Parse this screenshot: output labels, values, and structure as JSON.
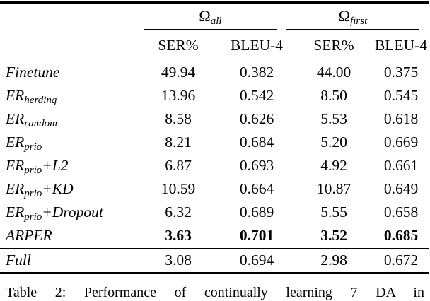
{
  "table": {
    "col_groups": [
      {
        "symbol": "Ω",
        "subscript": "all"
      },
      {
        "symbol": "Ω",
        "subscript": "first"
      }
    ],
    "sub_headers": [
      "SER%",
      "BLEU-4",
      "SER%",
      "BLEU-4"
    ],
    "rows": [
      {
        "method": {
          "base": "Finetune",
          "sub": "",
          "suffix": ""
        },
        "values": [
          "49.94",
          "0.382",
          "44.00",
          "0.375"
        ],
        "bold": false
      },
      {
        "method": {
          "base": "ER",
          "sub": "herding",
          "suffix": ""
        },
        "values": [
          "13.96",
          "0.542",
          "8.50",
          "0.545"
        ],
        "bold": false
      },
      {
        "method": {
          "base": "ER",
          "sub": "random",
          "suffix": ""
        },
        "values": [
          "8.58",
          "0.626",
          "5.53",
          "0.618"
        ],
        "bold": false
      },
      {
        "method": {
          "base": "ER",
          "sub": "prio",
          "suffix": ""
        },
        "values": [
          "8.21",
          "0.684",
          "5.20",
          "0.669"
        ],
        "bold": false
      },
      {
        "method": {
          "base": "ER",
          "sub": "prio",
          "suffix": "+L2"
        },
        "values": [
          "6.87",
          "0.693",
          "4.92",
          "0.661"
        ],
        "bold": false
      },
      {
        "method": {
          "base": "ER",
          "sub": "prio",
          "suffix": "+KD"
        },
        "values": [
          "10.59",
          "0.664",
          "10.87",
          "0.649"
        ],
        "bold": false
      },
      {
        "method": {
          "base": "ER",
          "sub": "prio",
          "suffix": "+Dropout"
        },
        "values": [
          "6.32",
          "0.689",
          "5.55",
          "0.658"
        ],
        "bold": false
      },
      {
        "method": {
          "base": "ARPER",
          "sub": "",
          "suffix": ""
        },
        "values": [
          "3.63",
          "0.701",
          "3.52",
          "0.685"
        ],
        "bold": true
      }
    ],
    "footer_row": {
      "method": {
        "base": "Full",
        "sub": "",
        "suffix": ""
      },
      "values": [
        "3.08",
        "0.694",
        "2.98",
        "0.672"
      ],
      "bold": false
    }
  },
  "caption": "Table 2: Performance of continually learning 7 DA in"
}
